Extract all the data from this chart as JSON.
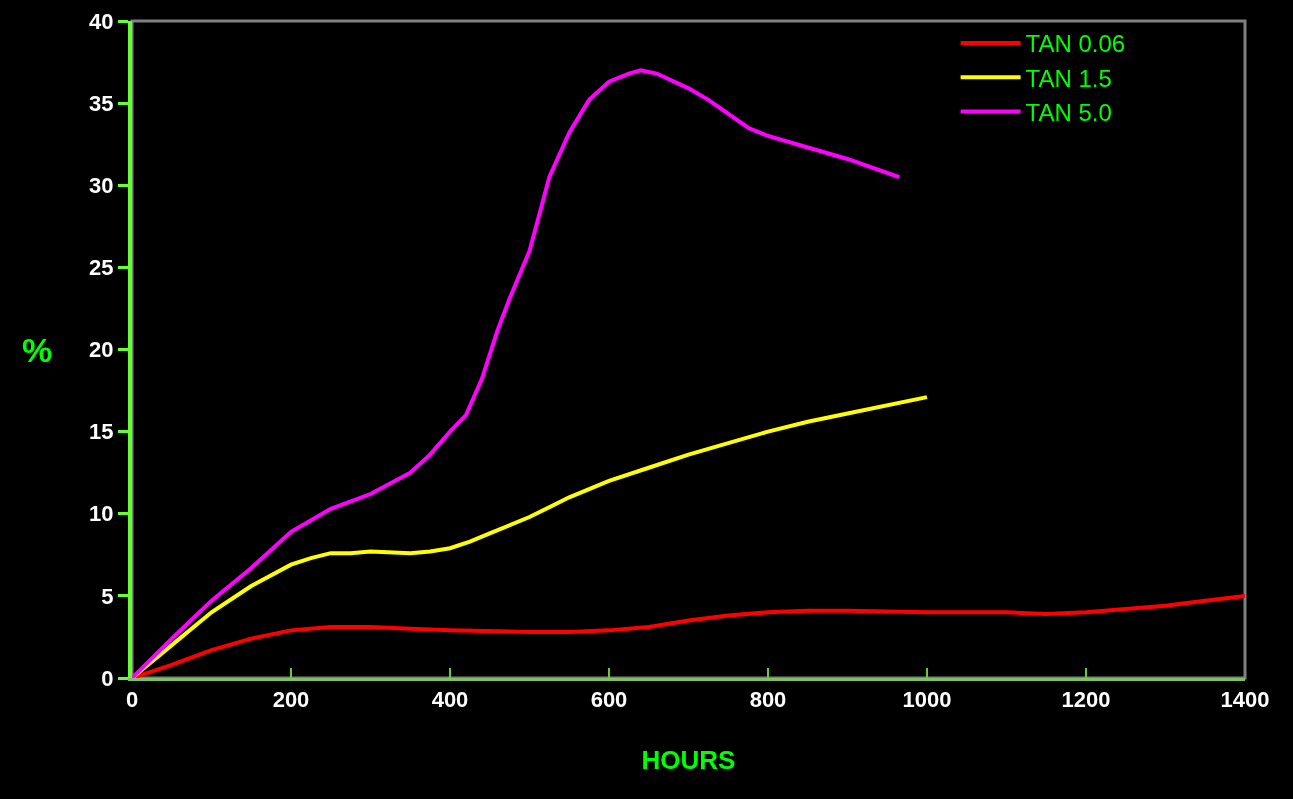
{
  "chart_data": {
    "type": "line",
    "xlabel": "HOURS",
    "ylabel": "%",
    "xlim": [
      0,
      1400
    ],
    "xticks": [
      0,
      200,
      400,
      600,
      800,
      1000,
      1200,
      1400
    ],
    "ylim": [
      0,
      40
    ],
    "yticks": [
      0,
      5,
      10,
      15,
      20,
      25,
      30,
      35,
      40
    ],
    "grid": false,
    "legend": "top right",
    "marker": "none",
    "line_style": "solid",
    "series": [
      {
        "name": "TAN 0.06",
        "color": "#ff0000",
        "x": [
          0,
          50,
          100,
          150,
          200,
          250,
          300,
          350,
          400,
          500,
          550,
          600,
          650,
          700,
          750,
          800,
          850,
          900,
          1000,
          1100,
          1150,
          1200,
          1250,
          1300,
          1350,
          1400
        ],
        "values": [
          0,
          0.8,
          1.7,
          2.4,
          2.9,
          3.1,
          3.1,
          3.0,
          2.9,
          2.8,
          2.8,
          2.9,
          3.1,
          3.5,
          3.8,
          4.0,
          4.1,
          4.1,
          4.0,
          4.0,
          3.9,
          4.0,
          4.2,
          4.4,
          4.7,
          5.0
        ]
      },
      {
        "name": "TAN 1.5",
        "color": "#ffff00",
        "x": [
          0,
          50,
          100,
          150,
          200,
          225,
          250,
          275,
          300,
          350,
          375,
          400,
          425,
          450,
          500,
          550,
          600,
          650,
          700,
          800,
          850,
          900,
          1000
        ],
        "values": [
          0,
          2.0,
          4.0,
          5.6,
          6.9,
          7.3,
          7.6,
          7.6,
          7.7,
          7.6,
          7.7,
          7.9,
          8.3,
          8.8,
          9.8,
          11.0,
          12.0,
          12.8,
          13.6,
          15.0,
          15.6,
          16.1,
          17.1
        ]
      },
      {
        "name": "TAN 5.0",
        "color": "#ff00ff",
        "x": [
          0,
          50,
          100,
          150,
          200,
          250,
          300,
          350,
          375,
          400,
          420,
          440,
          460,
          475,
          500,
          525,
          550,
          575,
          600,
          625,
          640,
          660,
          700,
          725,
          775,
          800,
          900,
          965
        ],
        "values": [
          0,
          2.4,
          4.7,
          6.7,
          8.9,
          10.3,
          11.2,
          12.5,
          13.6,
          15.0,
          16.0,
          18.2,
          21.2,
          23.1,
          26.0,
          30.5,
          33.2,
          35.2,
          36.3,
          36.8,
          37.0,
          36.8,
          35.9,
          35.2,
          33.5,
          33.0,
          31.6,
          30.5
        ]
      }
    ]
  }
}
